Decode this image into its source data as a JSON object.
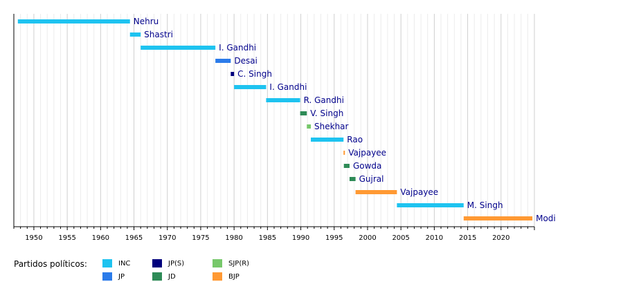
{
  "chart_data": {
    "type": "bar",
    "orientation": "horizontal-timeline",
    "xlim": [
      1947,
      2025
    ],
    "xticks": [
      1950,
      1955,
      1960,
      1965,
      1970,
      1975,
      1980,
      1985,
      1990,
      1995,
      2000,
      2005,
      2010,
      2015,
      2020
    ],
    "grid": true,
    "series": [
      {
        "label": "Nehru",
        "party": "INC",
        "start": 1947.6,
        "end": 1964.4
      },
      {
        "label": "Shastri",
        "party": "INC",
        "start": 1964.4,
        "end": 1966.0
      },
      {
        "label": "I. Gandhi",
        "party": "INC",
        "start": 1966.0,
        "end": 1977.2
      },
      {
        "label": "Desai",
        "party": "JP",
        "start": 1977.2,
        "end": 1979.5
      },
      {
        "label": "C. Singh",
        "party": "JP(S)",
        "start": 1979.5,
        "end": 1980.0
      },
      {
        "label": "I. Gandhi",
        "party": "INC",
        "start": 1980.0,
        "end": 1984.8
      },
      {
        "label": "R. Gandhi",
        "party": "INC",
        "start": 1984.8,
        "end": 1989.9
      },
      {
        "label": "V. Singh",
        "party": "JD",
        "start": 1989.9,
        "end": 1990.9
      },
      {
        "label": "Shekhar",
        "party": "SJP(R)",
        "start": 1990.9,
        "end": 1991.5
      },
      {
        "label": "Rao",
        "party": "INC",
        "start": 1991.5,
        "end": 1996.4
      },
      {
        "label": "Vajpayee",
        "party": "BJP",
        "start": 1996.4,
        "end": 1996.45
      },
      {
        "label": "Gowda",
        "party": "JD",
        "start": 1996.45,
        "end": 1997.3
      },
      {
        "label": "Gujral",
        "party": "JD",
        "start": 1997.3,
        "end": 1998.2
      },
      {
        "label": "Vajpayee",
        "party": "BJP",
        "start": 1998.2,
        "end": 2004.4
      },
      {
        "label": "M. Singh",
        "party": "INC",
        "start": 2004.4,
        "end": 2014.4
      },
      {
        "label": "Modi",
        "party": "BJP",
        "start": 2014.4,
        "end": 2024.7
      }
    ]
  },
  "legend": {
    "title": "Partidos políticos:",
    "items": [
      {
        "party": "INC",
        "color": "#1ec3f0"
      },
      {
        "party": "JP",
        "color": "#2b7bea"
      },
      {
        "party": "JP(S)",
        "color": "#00007d"
      },
      {
        "party": "JD",
        "color": "#2e8b57"
      },
      {
        "party": "SJP(R)",
        "color": "#77c86b"
      },
      {
        "party": "BJP",
        "color": "#ff9933"
      }
    ]
  }
}
